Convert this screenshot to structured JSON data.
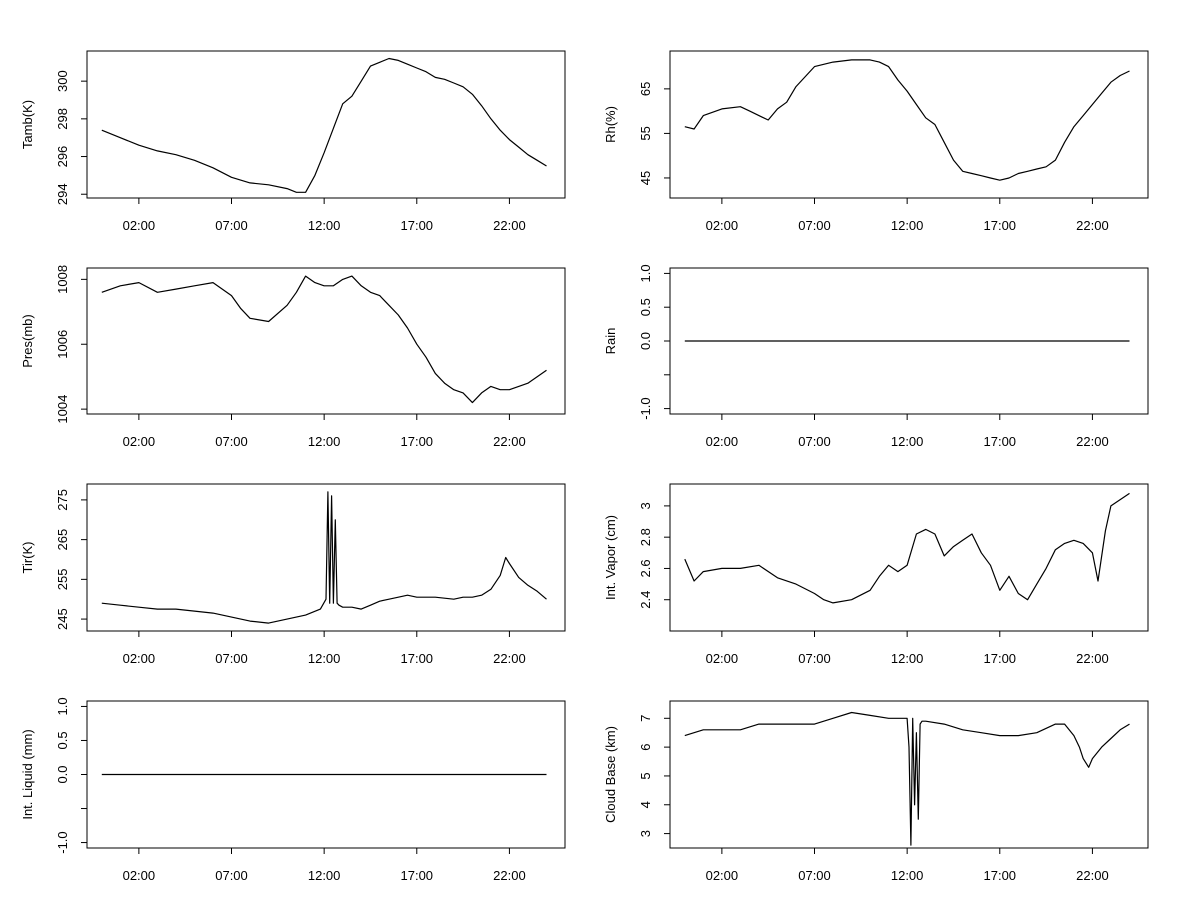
{
  "chart_data": [
    {
      "type": "line",
      "ylabel": "Tamb(K)",
      "x_tick_labels": [
        "02:00",
        "07:00",
        "12:00",
        "17:00",
        "22:00"
      ],
      "x_ticks_hours": [
        2,
        7,
        12,
        17,
        22
      ],
      "x_range_hours": [
        -0.8,
        25.0
      ],
      "y_ticks": [
        294,
        296,
        298,
        300
      ],
      "ylim": [
        293.8,
        301.6
      ],
      "series": [
        {
          "x": [
            0,
            1,
            2,
            3,
            4,
            5,
            6,
            7,
            8,
            9,
            10,
            10.5,
            11,
            11.5,
            12,
            12.5,
            13,
            13.5,
            14,
            14.5,
            15,
            15.5,
            16,
            16.5,
            17,
            17.5,
            18,
            18.5,
            19,
            19.5,
            20,
            20.5,
            21,
            21.5,
            22,
            22.5,
            23,
            23.5,
            24
          ],
          "y": [
            297.4,
            297.0,
            296.6,
            296.3,
            296.1,
            295.8,
            295.4,
            294.9,
            294.6,
            294.5,
            294.3,
            294.1,
            294.1,
            295.0,
            296.2,
            297.5,
            298.8,
            299.2,
            300.0,
            300.8,
            301.0,
            301.2,
            301.1,
            300.9,
            300.7,
            300.5,
            300.2,
            300.1,
            299.9,
            299.7,
            299.3,
            298.7,
            298.0,
            297.4,
            296.9,
            296.5,
            296.1,
            295.8,
            295.5
          ]
        }
      ]
    },
    {
      "type": "line",
      "ylabel": "Rh(%)",
      "x_tick_labels": [
        "02:00",
        "07:00",
        "12:00",
        "17:00",
        "22:00"
      ],
      "x_ticks_hours": [
        2,
        7,
        12,
        17,
        22
      ],
      "x_range_hours": [
        -0.8,
        25.0
      ],
      "y_ticks": [
        45,
        55,
        65
      ],
      "ylim": [
        40.5,
        73.5
      ],
      "series": [
        {
          "x": [
            0,
            0.5,
            1,
            2,
            3,
            3.5,
            4,
            4.5,
            5,
            5.5,
            6,
            7,
            8,
            9,
            10,
            10.5,
            11,
            11.5,
            12,
            12.5,
            13,
            13.5,
            14,
            14.5,
            15,
            15.5,
            16,
            16.5,
            17,
            17.5,
            18,
            18.5,
            19,
            19.5,
            20,
            20.5,
            21,
            21.5,
            22,
            22.5,
            23,
            23.5,
            24
          ],
          "y": [
            56.5,
            56.0,
            59.0,
            60.5,
            61.0,
            60.0,
            59.0,
            58.0,
            60.5,
            62.0,
            65.5,
            70.0,
            71.0,
            71.5,
            71.5,
            71.0,
            70.0,
            67.0,
            64.5,
            61.5,
            58.5,
            57.0,
            53.0,
            49.0,
            46.5,
            46.0,
            45.5,
            45.0,
            44.5,
            45.0,
            46.0,
            46.5,
            47.0,
            47.5,
            49.0,
            53.0,
            56.5,
            59.0,
            61.5,
            64.0,
            66.5,
            68.0,
            69.0
          ]
        }
      ]
    },
    {
      "type": "line",
      "ylabel": "Pres(mb)",
      "x_tick_labels": [
        "02:00",
        "07:00",
        "12:00",
        "17:00",
        "22:00"
      ],
      "x_ticks_hours": [
        2,
        7,
        12,
        17,
        22
      ],
      "x_range_hours": [
        -0.8,
        25.0
      ],
      "y_ticks": [
        1004,
        1006,
        1008
      ],
      "ylim": [
        1003.85,
        1008.35
      ],
      "series": [
        {
          "x": [
            0,
            1,
            2,
            3,
            4,
            5,
            6,
            7,
            7.5,
            8,
            9,
            10,
            10.5,
            11,
            11.5,
            12,
            12.5,
            13,
            13.5,
            14,
            14.5,
            15,
            15.5,
            16,
            16.5,
            17,
            17.5,
            18,
            18.5,
            19,
            19.5,
            20,
            20.5,
            21,
            21.5,
            22,
            22.5,
            23,
            23.5,
            24
          ],
          "y": [
            1007.6,
            1007.8,
            1007.9,
            1007.6,
            1007.7,
            1007.8,
            1007.9,
            1007.5,
            1007.1,
            1006.8,
            1006.7,
            1007.2,
            1007.6,
            1008.1,
            1007.9,
            1007.8,
            1007.8,
            1008.0,
            1008.1,
            1007.8,
            1007.6,
            1007.5,
            1007.2,
            1006.9,
            1006.5,
            1006.0,
            1005.6,
            1005.1,
            1004.8,
            1004.6,
            1004.5,
            1004.2,
            1004.5,
            1004.7,
            1004.6,
            1004.6,
            1004.7,
            1004.8,
            1005.0,
            1005.2
          ]
        }
      ]
    },
    {
      "type": "line",
      "ylabel": "Rain",
      "x_tick_labels": [
        "02:00",
        "07:00",
        "12:00",
        "17:00",
        "22:00"
      ],
      "x_ticks_hours": [
        2,
        7,
        12,
        17,
        22
      ],
      "x_range_hours": [
        -0.8,
        25.0
      ],
      "y_ticks": [
        -1.0,
        -0.5,
        0.0,
        0.5,
        1.0
      ],
      "y_tick_labels": [
        "-1.0",
        "",
        "0.0",
        "0.5",
        "1.0"
      ],
      "ylim": [
        -1.08,
        1.08
      ],
      "series": [
        {
          "x": [
            0,
            24
          ],
          "y": [
            0,
            0
          ]
        }
      ]
    },
    {
      "type": "line",
      "ylabel": "Tir(K)",
      "x_tick_labels": [
        "02:00",
        "07:00",
        "12:00",
        "17:00",
        "22:00"
      ],
      "x_ticks_hours": [
        2,
        7,
        12,
        17,
        22
      ],
      "x_range_hours": [
        -0.8,
        25.0
      ],
      "y_ticks": [
        245,
        255,
        265,
        275
      ],
      "y_tick_labels": [
        "245",
        "255",
        "265",
        "275"
      ],
      "ylim": [
        242.0,
        279.0
      ],
      "series": [
        {
          "x": [
            0,
            1,
            2,
            3,
            4,
            5,
            6,
            7,
            8,
            9,
            10,
            11,
            11.8,
            12.1,
            12.2,
            12.3,
            12.4,
            12.5,
            12.6,
            12.7,
            12.8,
            13.0,
            13.5,
            14,
            14.5,
            15,
            15.5,
            16,
            16.5,
            17,
            18,
            19,
            19.5,
            20,
            20.5,
            21,
            21.5,
            21.8,
            22,
            22.5,
            23,
            23.5,
            24
          ],
          "y": [
            249.0,
            248.5,
            248.0,
            247.5,
            247.5,
            247.0,
            246.5,
            245.5,
            244.5,
            244.0,
            245.0,
            246.0,
            247.5,
            250.0,
            277.0,
            249.0,
            276.0,
            249.0,
            270.0,
            249.0,
            248.5,
            248.0,
            248.0,
            247.5,
            248.5,
            249.5,
            250.0,
            250.5,
            251.0,
            250.5,
            250.5,
            250.0,
            250.5,
            250.5,
            251.0,
            252.5,
            256.0,
            260.5,
            259.0,
            255.5,
            253.5,
            252.0,
            250.0
          ]
        }
      ]
    },
    {
      "type": "line",
      "ylabel": "Int. Vapor (cm)",
      "x_tick_labels": [
        "02:00",
        "07:00",
        "12:00",
        "17:00",
        "22:00"
      ],
      "x_ticks_hours": [
        2,
        7,
        12,
        17,
        22
      ],
      "x_range_hours": [
        -0.8,
        25.0
      ],
      "y_ticks": [
        2.4,
        2.6,
        2.8,
        3.0
      ],
      "ylim": [
        2.2,
        3.14
      ],
      "series": [
        {
          "x": [
            0,
            0.5,
            1,
            2,
            3,
            4,
            5,
            6,
            7,
            7.5,
            8,
            9,
            10,
            10.5,
            11,
            11.5,
            12,
            12.5,
            13,
            13.5,
            14,
            14.5,
            15,
            15.5,
            16,
            16.5,
            17,
            17.5,
            18,
            18.5,
            19,
            19.5,
            20,
            20.5,
            21,
            21.5,
            22,
            22.3,
            22.7,
            23,
            23.5,
            24
          ],
          "y": [
            2.66,
            2.52,
            2.58,
            2.6,
            2.6,
            2.62,
            2.54,
            2.5,
            2.44,
            2.4,
            2.38,
            2.4,
            2.46,
            2.55,
            2.62,
            2.58,
            2.62,
            2.82,
            2.85,
            2.82,
            2.68,
            2.74,
            2.78,
            2.82,
            2.7,
            2.62,
            2.46,
            2.55,
            2.44,
            2.4,
            2.5,
            2.6,
            2.72,
            2.76,
            2.78,
            2.76,
            2.7,
            2.52,
            2.84,
            3.0,
            3.04,
            3.08
          ]
        }
      ]
    },
    {
      "type": "line",
      "ylabel": "Int. Liquid (mm)",
      "x_tick_labels": [
        "02:00",
        "07:00",
        "12:00",
        "17:00",
        "22:00"
      ],
      "x_ticks_hours": [
        2,
        7,
        12,
        17,
        22
      ],
      "x_range_hours": [
        -0.8,
        25.0
      ],
      "y_ticks": [
        -1.0,
        -0.5,
        0.0,
        0.5,
        1.0
      ],
      "y_tick_labels": [
        "-1.0",
        "",
        "0.0",
        "0.5",
        "1.0"
      ],
      "ylim": [
        -1.08,
        1.08
      ],
      "series": [
        {
          "x": [
            0,
            24
          ],
          "y": [
            0,
            0
          ]
        }
      ]
    },
    {
      "type": "line",
      "ylabel": "Cloud Base (km)",
      "x_tick_labels": [
        "02:00",
        "07:00",
        "12:00",
        "17:00",
        "22:00"
      ],
      "x_ticks_hours": [
        2,
        7,
        12,
        17,
        22
      ],
      "x_range_hours": [
        -0.8,
        25.0
      ],
      "y_ticks": [
        3,
        4,
        5,
        6,
        7
      ],
      "ylim": [
        2.5,
        7.6
      ],
      "series": [
        {
          "x": [
            0,
            1,
            2,
            3,
            4,
            5,
            6,
            7,
            8,
            9,
            10,
            11,
            12,
            12.1,
            12.2,
            12.3,
            12.4,
            12.5,
            12.6,
            12.7,
            12.8,
            13,
            14,
            15,
            16,
            17,
            18,
            19,
            20,
            20.5,
            21,
            21.3,
            21.5,
            21.8,
            22,
            22.5,
            23,
            23.5,
            24
          ],
          "y": [
            6.4,
            6.6,
            6.6,
            6.6,
            6.8,
            6.8,
            6.8,
            6.8,
            7.0,
            7.2,
            7.1,
            7.0,
            7.0,
            6.0,
            2.6,
            7.0,
            4.0,
            6.5,
            3.5,
            6.8,
            6.9,
            6.9,
            6.8,
            6.6,
            6.5,
            6.4,
            6.4,
            6.5,
            6.8,
            6.8,
            6.4,
            6.0,
            5.6,
            5.3,
            5.6,
            6.0,
            6.3,
            6.6,
            6.8
          ]
        }
      ]
    }
  ]
}
